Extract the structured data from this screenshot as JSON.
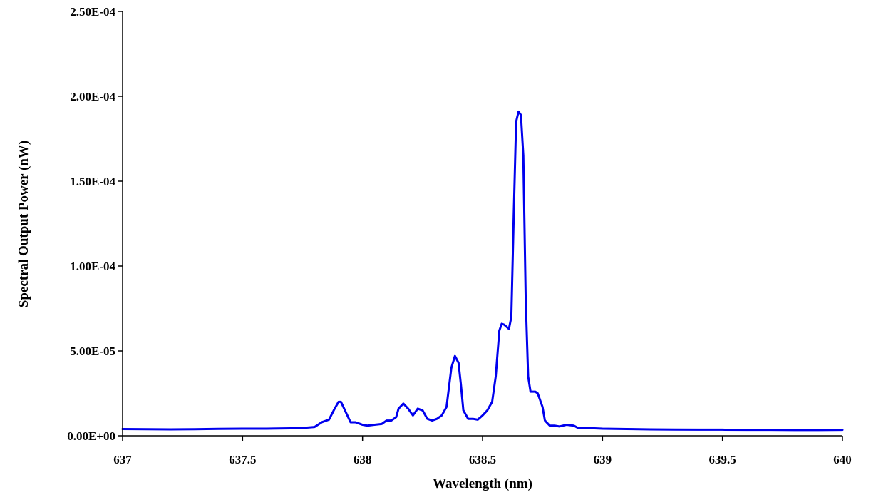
{
  "chart_data": {
    "type": "line",
    "xlabel": "Wavelength (nm)",
    "ylabel": "Spectral Output Power (nW)",
    "xlim": [
      637,
      640
    ],
    "ylim": [
      0,
      0.00025
    ],
    "x_ticks": [
      637,
      637.5,
      638,
      638.5,
      639,
      639.5,
      640
    ],
    "x_tick_labels": [
      "637",
      "637.5",
      "638",
      "638.5",
      "639",
      "639.5",
      "640"
    ],
    "y_ticks": [
      0,
      5e-05,
      0.0001,
      0.00015,
      0.0002,
      0.00025
    ],
    "y_tick_labels": [
      "0.00E+00",
      "5.00E-05",
      "1.00E-04",
      "1.50E-04",
      "2.00E-04",
      "2.50E-04"
    ],
    "grid": false,
    "legend": "none",
    "series": [
      {
        "color": "#0000ee",
        "points": [
          [
            637.0,
            4e-06
          ],
          [
            637.1,
            3.9e-06
          ],
          [
            637.2,
            3.8e-06
          ],
          [
            637.3,
            3.9e-06
          ],
          [
            637.4,
            4.1e-06
          ],
          [
            637.5,
            4.2e-06
          ],
          [
            637.6,
            4.2e-06
          ],
          [
            637.7,
            4.4e-06
          ],
          [
            637.75,
            4.6e-06
          ],
          [
            637.8,
            5.2e-06
          ],
          [
            637.83,
            8e-06
          ],
          [
            637.86,
            9.5e-06
          ],
          [
            637.88,
            1.5e-05
          ],
          [
            637.9,
            2e-05
          ],
          [
            637.91,
            2e-05
          ],
          [
            637.93,
            1.4e-05
          ],
          [
            637.95,
            8e-06
          ],
          [
            637.97,
            8e-06
          ],
          [
            638.0,
            6.5e-06
          ],
          [
            638.02,
            6e-06
          ],
          [
            638.05,
            6.5e-06
          ],
          [
            638.08,
            7e-06
          ],
          [
            638.1,
            9e-06
          ],
          [
            638.12,
            9e-06
          ],
          [
            638.14,
            1.1e-05
          ],
          [
            638.15,
            1.6e-05
          ],
          [
            638.17,
            1.9e-05
          ],
          [
            638.19,
            1.6e-05
          ],
          [
            638.21,
            1.2e-05
          ],
          [
            638.23,
            1.6e-05
          ],
          [
            638.25,
            1.5e-05
          ],
          [
            638.27,
            1e-05
          ],
          [
            638.29,
            9e-06
          ],
          [
            638.31,
            1e-05
          ],
          [
            638.33,
            1.2e-05
          ],
          [
            638.35,
            1.7e-05
          ],
          [
            638.37,
            4e-05
          ],
          [
            638.385,
            4.7e-05
          ],
          [
            638.4,
            4.3e-05
          ],
          [
            638.41,
            3e-05
          ],
          [
            638.42,
            1.5e-05
          ],
          [
            638.44,
            1e-05
          ],
          [
            638.46,
            1e-05
          ],
          [
            638.48,
            9.5e-06
          ],
          [
            638.5,
            1.2e-05
          ],
          [
            638.52,
            1.5e-05
          ],
          [
            638.54,
            2e-05
          ],
          [
            638.555,
            3.5e-05
          ],
          [
            638.57,
            6.2e-05
          ],
          [
            638.58,
            6.6e-05
          ],
          [
            638.59,
            6.55e-05
          ],
          [
            638.61,
            6.3e-05
          ],
          [
            638.62,
            7e-05
          ],
          [
            638.63,
            0.00013
          ],
          [
            638.64,
            0.000185
          ],
          [
            638.65,
            0.000191
          ],
          [
            638.66,
            0.000189
          ],
          [
            638.67,
            0.000165
          ],
          [
            638.68,
            8e-05
          ],
          [
            638.69,
            3.5e-05
          ],
          [
            638.7,
            2.6e-05
          ],
          [
            638.72,
            2.6e-05
          ],
          [
            638.73,
            2.5e-05
          ],
          [
            638.75,
            1.7e-05
          ],
          [
            638.76,
            9e-06
          ],
          [
            638.78,
            6e-06
          ],
          [
            638.8,
            6e-06
          ],
          [
            638.82,
            5.5e-06
          ],
          [
            638.85,
            6.5e-06
          ],
          [
            638.88,
            6e-06
          ],
          [
            638.9,
            4.5e-06
          ],
          [
            638.95,
            4.5e-06
          ],
          [
            639.0,
            4.2e-06
          ],
          [
            639.1,
            4e-06
          ],
          [
            639.2,
            3.8e-06
          ],
          [
            639.3,
            3.7e-06
          ],
          [
            639.4,
            3.6e-06
          ],
          [
            639.5,
            3.6e-06
          ],
          [
            639.6,
            3.5e-06
          ],
          [
            639.7,
            3.5e-06
          ],
          [
            639.8,
            3.4e-06
          ],
          [
            639.9,
            3.4e-06
          ],
          [
            640.0,
            3.5e-06
          ]
        ]
      }
    ]
  }
}
